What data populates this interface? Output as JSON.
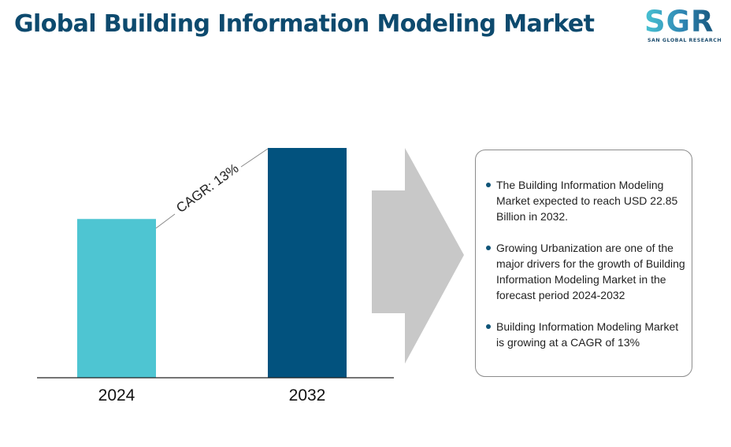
{
  "header": {
    "title": "Global Building Information Modeling Market",
    "logo": {
      "letters": "SGR",
      "tagline": "SAN GLOBAL RESEARCH"
    }
  },
  "chart_data": {
    "type": "bar",
    "categories": [
      "2024",
      "2032"
    ],
    "values": [
      7.6,
      11.0
    ],
    "value_note": "bar heights relative (no axis shown)",
    "colors": [
      "#4ec5d2",
      "#02527e"
    ],
    "annotation": "CAGR: 13%",
    "title": "",
    "xlabel": "",
    "ylabel": "",
    "grid": false
  },
  "info_panel": {
    "bullets": [
      "The Building Information Modeling Market expected to reach USD 22.85 Billion in 2032.",
      "Growing Urbanization are one of the major drivers for the growth of Building Information Modeling Market in the forecast period 2024-2032",
      "Building Information Modeling Market is growing at a CAGR of 13%"
    ]
  },
  "colors": {
    "title": "#0d4a6e",
    "arrow": "#c8c8c8",
    "bullet": "#0f5478",
    "axis": "#222222"
  }
}
